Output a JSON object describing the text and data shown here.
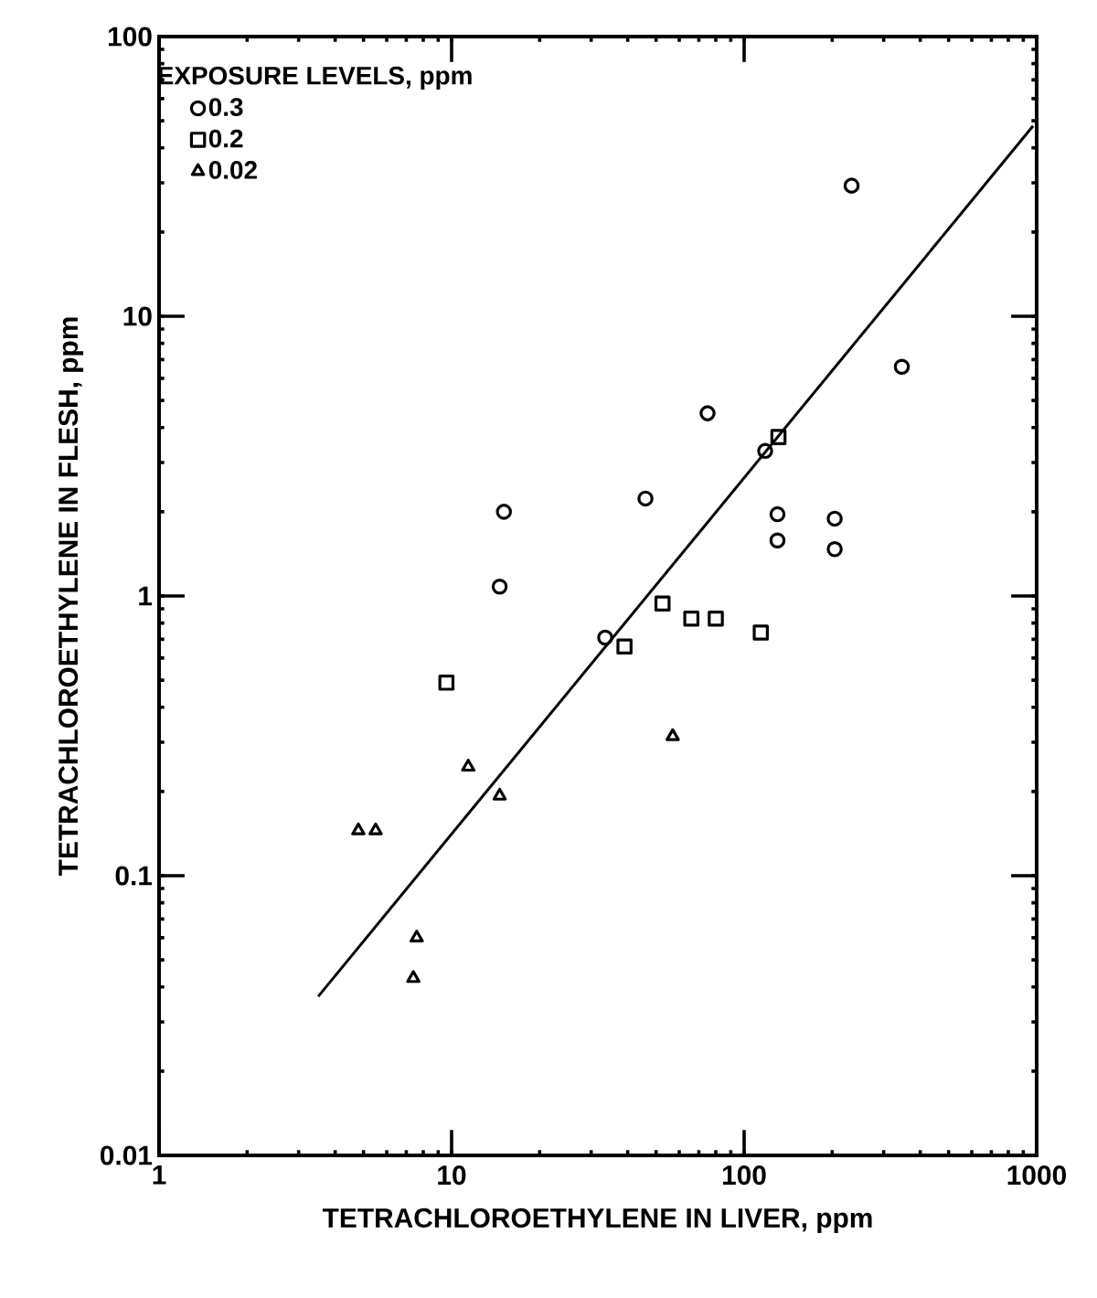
{
  "chart_data": {
    "type": "scatter",
    "xlabel": "TETRACHLOROETHYLENE IN LIVER, ppm",
    "ylabel": "TETRACHLOROETHYLENE IN FLESH, ppm",
    "legend_title": "EXPOSURE LEVELS, ppm",
    "log": "xy",
    "legend": "top left",
    "grid": false,
    "xlim": [
      1,
      1000
    ],
    "xticks": [
      1,
      10,
      100,
      1000
    ],
    "ylim": [
      0.01,
      100
    ],
    "yticks": [
      0.01,
      0.1,
      1,
      10,
      100
    ],
    "series": [
      {
        "name": "0.3",
        "color": "#000000",
        "marker": "circle",
        "x": [
          233,
          346,
          75,
          118,
          130,
          130,
          204,
          204,
          46,
          15.1,
          14.6,
          33.5
        ],
        "values": [
          29.3,
          6.6,
          4.5,
          3.3,
          1.96,
          1.58,
          1.89,
          1.47,
          2.23,
          2.0,
          1.08,
          0.71
        ]
      },
      {
        "name": "0.2",
        "color": "#000000",
        "marker": "square",
        "x": [
          131,
          52.6,
          66,
          80,
          114,
          39,
          9.6
        ],
        "values": [
          3.7,
          0.94,
          0.83,
          0.83,
          0.74,
          0.66,
          0.49
        ]
      },
      {
        "name": "0.02",
        "color": "#000000",
        "marker": "triangle",
        "x": [
          57,
          11.4,
          14.6,
          4.8,
          5.5,
          7.6,
          7.4
        ],
        "values": [
          0.315,
          0.245,
          0.193,
          0.145,
          0.145,
          0.06,
          0.043
        ]
      },
      {
        "type": "line",
        "color": "#000000",
        "marker": "none",
        "line_style": "solid",
        "x": [
          3.5,
          972
        ],
        "values": [
          0.037,
          47.9
        ]
      }
    ]
  }
}
